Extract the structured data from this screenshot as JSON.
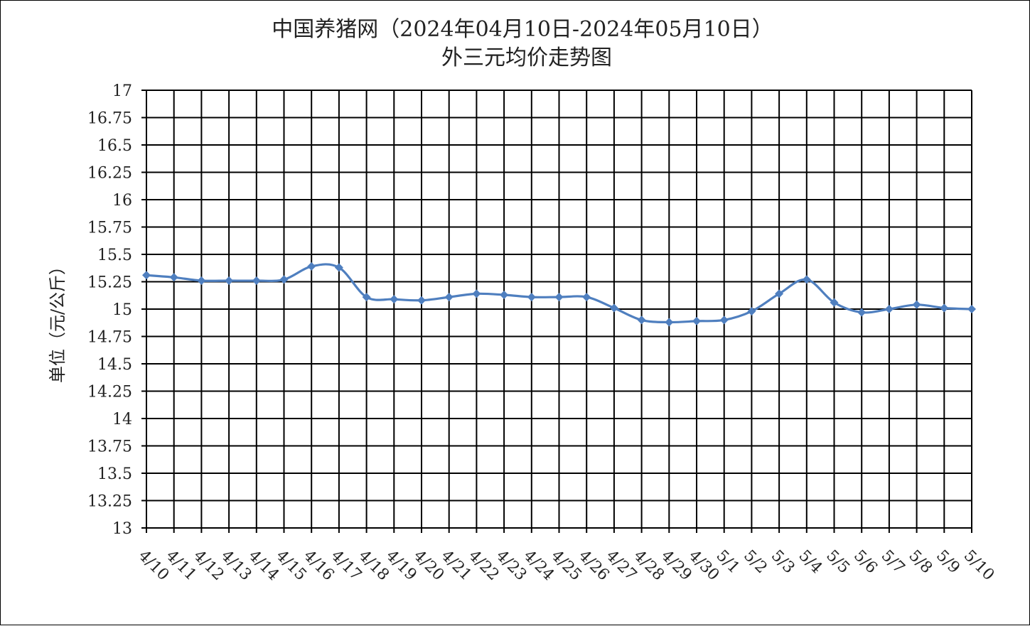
{
  "chart_data": {
    "type": "line",
    "title": "中国养猪网（2024年04月10日-2024年05月10日）",
    "subtitle": "外三元均价走势图",
    "xlabel": "",
    "ylabel": "单位（元/公斤）",
    "ylim": [
      13,
      17
    ],
    "ytick_step": 0.25,
    "yticks": [
      "17",
      "16.75",
      "16.5",
      "16.25",
      "16",
      "15.75",
      "15.5",
      "15.25",
      "15",
      "14.75",
      "14.5",
      "14.25",
      "14",
      "13.75",
      "13.5",
      "13.25",
      "13"
    ],
    "grid": true,
    "legend": "none",
    "series_color": "#4f7fbf",
    "categories": [
      "4/10",
      "4/11",
      "4/12",
      "4/13",
      "4/14",
      "4/15",
      "4/16",
      "4/17",
      "4/18",
      "4/19",
      "4/20",
      "4/21",
      "4/22",
      "4/23",
      "4/24",
      "4/25",
      "4/26",
      "4/27",
      "4/28",
      "4/29",
      "4/30",
      "5/1",
      "5/2",
      "5/3",
      "5/4",
      "5/5",
      "5/6",
      "5/7",
      "5/8",
      "5/9",
      "5/10"
    ],
    "series": [
      {
        "values": [
          15.31,
          15.29,
          15.26,
          15.26,
          15.26,
          15.27,
          15.39,
          15.38,
          15.11,
          15.09,
          15.08,
          15.11,
          15.14,
          15.13,
          15.11,
          15.11,
          15.11,
          15.01,
          14.9,
          14.88,
          14.89,
          14.9,
          14.98,
          15.14,
          15.27,
          15.06,
          14.97,
          15.0,
          15.04,
          15.01,
          15.0
        ]
      }
    ]
  }
}
